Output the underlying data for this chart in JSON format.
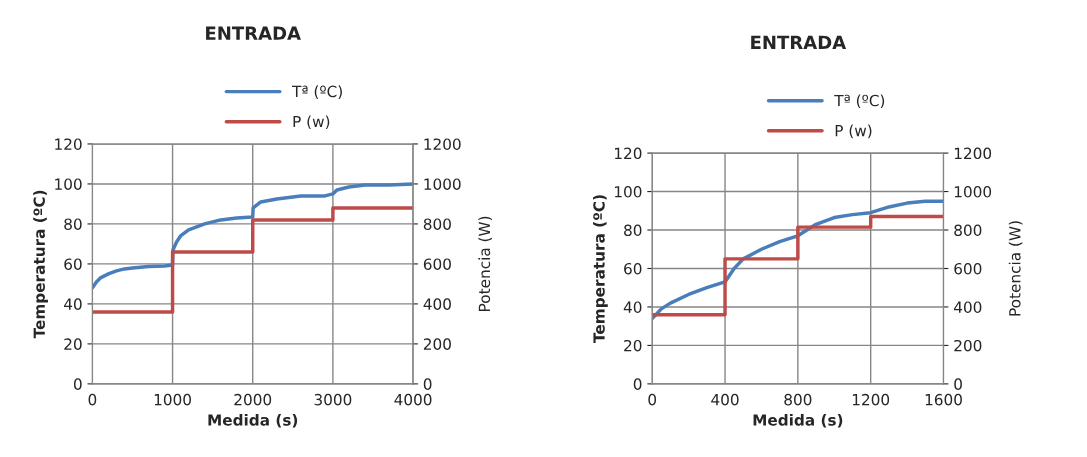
{
  "chart_data": [
    {
      "type": "line",
      "title": "ENTRADA",
      "xlabel": "Medida (s)",
      "ylabel": "Temperatura (ºC)",
      "y2label": "Potencia (W)",
      "xlim": [
        0,
        4000
      ],
      "xticks": [
        0,
        1000,
        2000,
        3000,
        4000
      ],
      "ylim": [
        0,
        120
      ],
      "yticks": [
        0,
        20,
        40,
        60,
        80,
        100,
        120
      ],
      "y2lim": [
        0,
        1200
      ],
      "y2ticks": [
        0,
        200,
        400,
        600,
        800,
        1000,
        1200
      ],
      "grid": true,
      "legend": "top",
      "series": [
        {
          "name": "Tª (ºC)",
          "color": "#4a7ebb",
          "x": [
            0,
            50,
            100,
            200,
            300,
            400,
            500,
            700,
            900,
            1000,
            1005,
            1050,
            1100,
            1200,
            1400,
            1600,
            1800,
            2000,
            2005,
            2100,
            2300,
            2600,
            2900,
            3000,
            3050,
            3200,
            3400,
            3700,
            4000
          ],
          "values": [
            48,
            51,
            53,
            55,
            56.5,
            57.5,
            58,
            58.7,
            59,
            59.5,
            67,
            71,
            74,
            77,
            80,
            82,
            83,
            83.5,
            88,
            91,
            92.5,
            94,
            94,
            95,
            97,
            98.5,
            99.5,
            99.5,
            100
          ]
        },
        {
          "name": "P (w)",
          "color": "#be4b48",
          "type": "step",
          "axis": "y2",
          "x": [
            0,
            1000,
            2000,
            3000,
            4000
          ],
          "values": [
            360,
            660,
            820,
            880,
            880
          ]
        }
      ]
    },
    {
      "type": "line",
      "title": "ENTRADA",
      "xlabel": "Medida (s)",
      "ylabel": "Temperatura (ºC)",
      "y2label": "Potencia (W)",
      "xlim": [
        0,
        1600
      ],
      "xticks": [
        0,
        400,
        800,
        1200,
        1600
      ],
      "ylim": [
        0,
        120
      ],
      "yticks": [
        0,
        20,
        40,
        60,
        80,
        100,
        120
      ],
      "y2lim": [
        0,
        1200
      ],
      "y2ticks": [
        0,
        200,
        400,
        600,
        800,
        1000,
        1200
      ],
      "grid": true,
      "legend": "top",
      "series": [
        {
          "name": "Tª (ºC)",
          "color": "#4a7ebb",
          "x": [
            0,
            50,
            100,
            200,
            300,
            400,
            450,
            500,
            600,
            700,
            800,
            850,
            900,
            1000,
            1100,
            1200,
            1300,
            1400,
            1500,
            1600
          ],
          "values": [
            34,
            39,
            42,
            46.5,
            50,
            53,
            60,
            65,
            70,
            74,
            77,
            80,
            83,
            86.5,
            88,
            89,
            92,
            94,
            95,
            95
          ]
        },
        {
          "name": "P (w)",
          "color": "#be4b48",
          "type": "step",
          "axis": "y2",
          "x": [
            0,
            400,
            800,
            1200,
            1600
          ],
          "values": [
            360,
            650,
            815,
            870,
            870
          ]
        }
      ]
    }
  ]
}
